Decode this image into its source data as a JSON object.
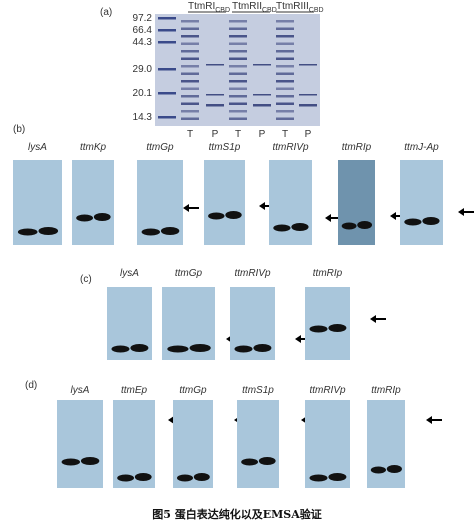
{
  "panel_a": {
    "tag": "(a)",
    "markers": [
      "97.2",
      "66.4",
      "44.3",
      "29.0",
      "20.1",
      "14.3"
    ],
    "groups": [
      {
        "main": "TtmRI",
        "sub": "CBD"
      },
      {
        "main": "TtmRII",
        "sub": "CBD"
      },
      {
        "main": "TtmRIII",
        "sub": "CBD"
      }
    ],
    "lanes": [
      "T",
      "P",
      "T",
      "P",
      "T",
      "P"
    ]
  },
  "panel_b": {
    "tag": "(b)",
    "blots": [
      "lysA",
      "ttmKp",
      "ttmGp",
      "ttmS1p",
      "ttmRIVp",
      "ttmRIp",
      "ttmJ-Ap"
    ]
  },
  "panel_c": {
    "tag": "(c)",
    "blots": [
      "lysA",
      "ttmGp",
      "ttmRIVp",
      "ttmRIp"
    ]
  },
  "panel_d": {
    "tag": "(d)",
    "blots": [
      "lysA",
      "ttmEp",
      "ttmGp",
      "ttmS1p",
      "ttmRIVp",
      "ttmRIp"
    ]
  },
  "caption": "图5 蛋白表达纯化以及EMSA验证"
}
